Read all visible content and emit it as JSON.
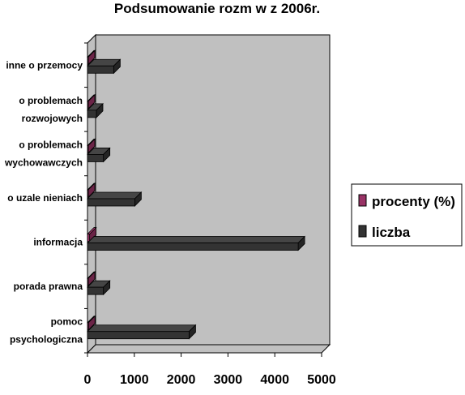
{
  "chart_data": {
    "type": "bar",
    "orientation": "horizontal",
    "title": "Podsumowanie rozm   w z 2006r.",
    "categories": [
      "pomoc psychologiczna",
      "porada prawna",
      "informacja",
      "o uzale  nieniach",
      "o problemach wychowawczych",
      "o problemach rozwojowych",
      "inne o przemocy"
    ],
    "category_lines": [
      [
        "pomoc",
        "psychologiczna"
      ],
      [
        "porada prawna"
      ],
      [
        "informacja"
      ],
      [
        "o uzale  nieniach"
      ],
      [
        "o problemach",
        "wychowawczych"
      ],
      [
        "o problemach",
        "rozwojowych"
      ],
      [
        "inne o przemocy"
      ]
    ],
    "series": [
      {
        "name": "procenty (%)",
        "color": "#993366",
        "values": [
          21.8,
          3.4,
          45.4,
          10.1,
          3.4,
          1.9,
          5.6
        ]
      },
      {
        "name": "liczba",
        "color": "#333333",
        "values": [
          2170,
          340,
          4500,
          1010,
          340,
          190,
          560
        ]
      }
    ],
    "xlim": [
      0,
      5000
    ],
    "xticks": [
      "0",
      "1000",
      "2000",
      "3000",
      "4000",
      "5000"
    ],
    "xlabel": "",
    "ylabel": "",
    "grid": false,
    "legend_position": "right",
    "plot_background": "#c0c0c0"
  }
}
